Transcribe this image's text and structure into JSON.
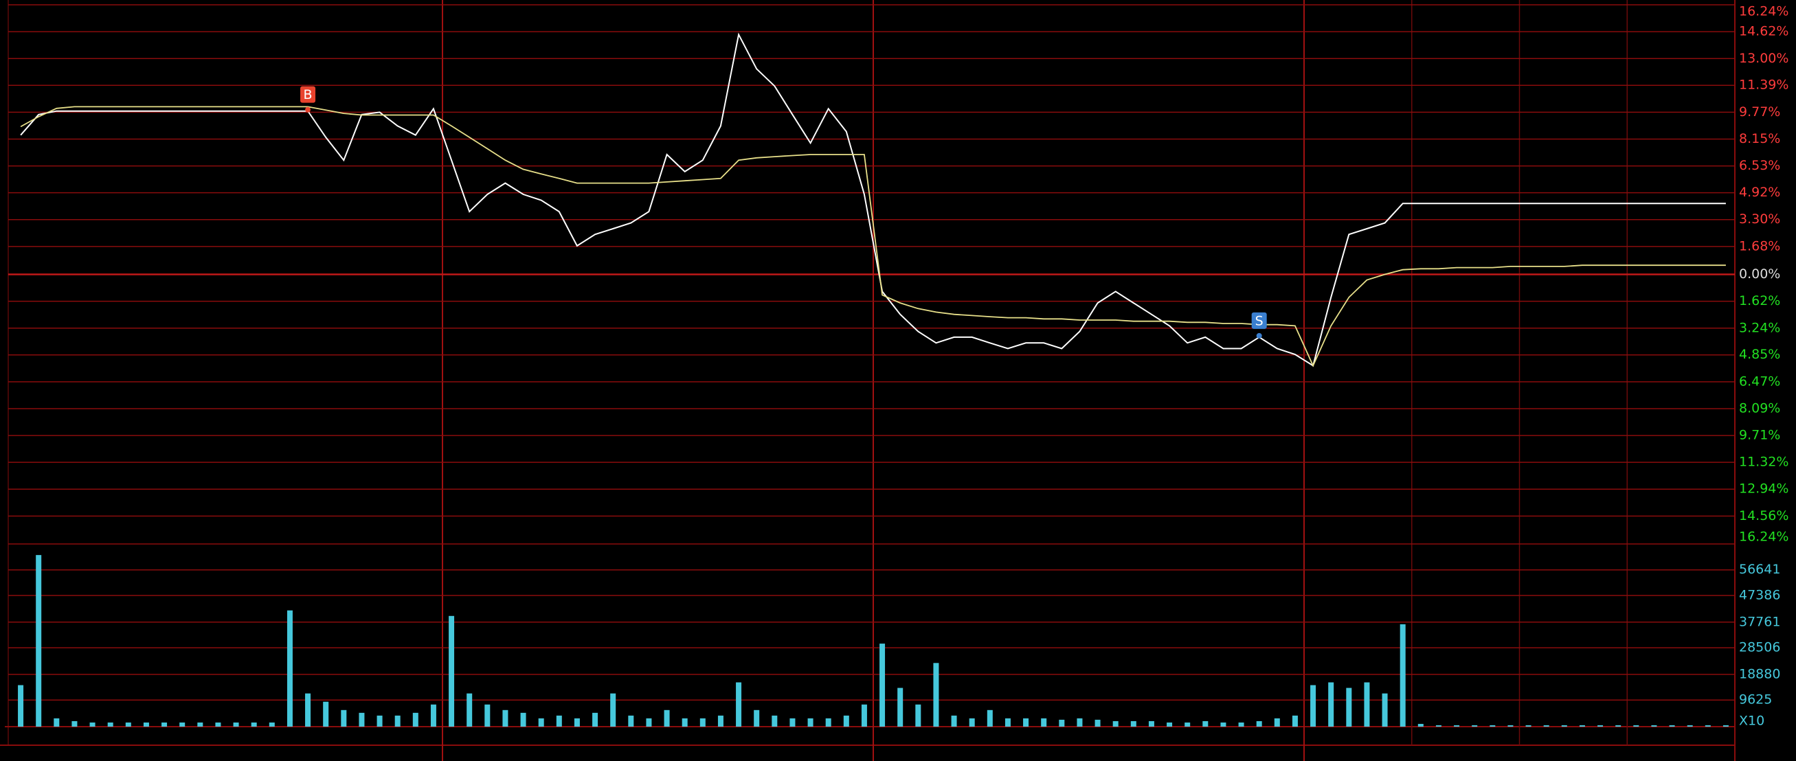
{
  "chart_data": [
    {
      "type": "line",
      "ylim": [
        -16.24,
        16.24
      ],
      "yticks": [
        {
          "value": 16.24,
          "label": "16.24%"
        },
        {
          "value": 14.62,
          "label": "14.62%"
        },
        {
          "value": 13.0,
          "label": "13.00%"
        },
        {
          "value": 11.39,
          "label": "11.39%"
        },
        {
          "value": 9.77,
          "label": "9.77%"
        },
        {
          "value": 8.15,
          "label": "8.15%"
        },
        {
          "value": 6.53,
          "label": "6.53%"
        },
        {
          "value": 4.92,
          "label": "4.92%"
        },
        {
          "value": 3.3,
          "label": "3.30%"
        },
        {
          "value": 1.68,
          "label": "1.68%"
        },
        {
          "value": 0,
          "label": "0.00%"
        },
        {
          "value": -1.62,
          "label": "1.62%"
        },
        {
          "value": -3.24,
          "label": "3.24%"
        },
        {
          "value": -4.85,
          "label": "4.85%"
        },
        {
          "value": -6.47,
          "label": "6.47%"
        },
        {
          "value": -8.09,
          "label": "8.09%"
        },
        {
          "value": -9.71,
          "label": "9.71%"
        },
        {
          "value": -11.32,
          "label": "11.32%"
        },
        {
          "value": -12.94,
          "label": "12.94%"
        },
        {
          "value": -14.56,
          "label": "14.56%"
        },
        {
          "value": -16.24,
          "label": "16.24%"
        }
      ],
      "grid": true,
      "series": [
        {
          "color": "#ffffff",
          "values": [
            8.39,
            9.63,
            9.84,
            9.84,
            9.84,
            9.84,
            9.84,
            9.84,
            9.84,
            9.84,
            9.84,
            9.84,
            9.84,
            9.84,
            9.84,
            9.84,
            9.84,
            8.26,
            6.88,
            9.63,
            9.77,
            8.94,
            8.39,
            9.98,
            6.88,
            3.78,
            4.82,
            5.5,
            4.82,
            4.47,
            3.78,
            1.72,
            2.41,
            2.75,
            3.1,
            3.78,
            7.22,
            6.19,
            6.88,
            8.94,
            14.45,
            12.38,
            11.35,
            9.63,
            7.91,
            9.98,
            8.6,
            4.82,
            -1.03,
            -2.41,
            -3.44,
            -4.13,
            -3.78,
            -3.78,
            -4.13,
            -4.47,
            -4.13,
            -4.13,
            -4.47,
            -3.44,
            -1.72,
            -1.03,
            -1.72,
            -2.41,
            -3.1,
            -4.13,
            -3.78,
            -4.47,
            -4.47,
            -3.78,
            -4.47,
            -4.82,
            -5.5,
            -1.38,
            2.41,
            2.75,
            3.1,
            4.27,
            4.27,
            4.27,
            4.27,
            4.27,
            4.27,
            4.27,
            4.27,
            4.27,
            4.27,
            4.27,
            4.27,
            4.27,
            4.27,
            4.27,
            4.27,
            4.27,
            4.27,
            4.27
          ]
        },
        {
          "color": "#e8e08a",
          "values": [
            8.9,
            9.5,
            10.0,
            10.1,
            10.1,
            10.1,
            10.1,
            10.1,
            10.1,
            10.1,
            10.1,
            10.1,
            10.1,
            10.1,
            10.1,
            10.1,
            10.1,
            9.9,
            9.7,
            9.6,
            9.6,
            9.6,
            9.6,
            9.6,
            8.94,
            8.26,
            7.57,
            6.88,
            6.33,
            6.05,
            5.78,
            5.5,
            5.5,
            5.5,
            5.5,
            5.5,
            5.57,
            5.64,
            5.71,
            5.78,
            6.88,
            7.02,
            7.09,
            7.16,
            7.22,
            7.22,
            7.22,
            7.22,
            -1.24,
            -1.72,
            -2.06,
            -2.27,
            -2.41,
            -2.48,
            -2.55,
            -2.61,
            -2.61,
            -2.68,
            -2.68,
            -2.75,
            -2.75,
            -2.75,
            -2.82,
            -2.82,
            -2.82,
            -2.89,
            -2.89,
            -2.96,
            -2.96,
            -3.03,
            -3.03,
            -3.1,
            -5.5,
            -3.1,
            -1.38,
            -0.34,
            0,
            0.28,
            0.34,
            0.34,
            0.41,
            0.41,
            0.41,
            0.48,
            0.48,
            0.48,
            0.48,
            0.55,
            0.55,
            0.55,
            0.55,
            0.55,
            0.55,
            0.55,
            0.55,
            0.55
          ]
        }
      ],
      "annotations": [
        {
          "text": "B",
          "x": 16,
          "color": "#e8432e"
        },
        {
          "text": "S",
          "x": 69,
          "color": "#3a7fd0"
        }
      ]
    },
    {
      "type": "bar",
      "ylim": [
        0,
        66000
      ],
      "yticks": [
        56641,
        47386,
        37761,
        28506,
        18880,
        9625
      ],
      "y_label": "X10",
      "color": "#46c8dc",
      "grid": true,
      "values": [
        15000,
        62000,
        3000,
        2000,
        1500,
        1500,
        1500,
        1500,
        1500,
        1500,
        1500,
        1500,
        1500,
        1500,
        1500,
        42000,
        12000,
        9000,
        6000,
        5000,
        4000,
        4000,
        5000,
        8000,
        40000,
        12000,
        8000,
        6000,
        5000,
        3000,
        4000,
        3000,
        5000,
        12000,
        4000,
        3000,
        6000,
        3000,
        3000,
        4000,
        16000,
        6000,
        4000,
        3000,
        3000,
        3000,
        4000,
        8000,
        30000,
        14000,
        8000,
        23000,
        4000,
        3000,
        6000,
        3000,
        3000,
        3000,
        2500,
        3000,
        2500,
        2000,
        2000,
        2000,
        1500,
        1500,
        2000,
        1500,
        1500,
        2000,
        3000,
        4000,
        15000,
        16000,
        14000,
        16000,
        12000,
        37000,
        1000,
        500,
        500,
        500,
        500,
        500,
        500,
        500,
        500,
        500,
        500,
        500,
        500,
        500,
        500,
        500,
        500,
        500
      ]
    }
  ]
}
